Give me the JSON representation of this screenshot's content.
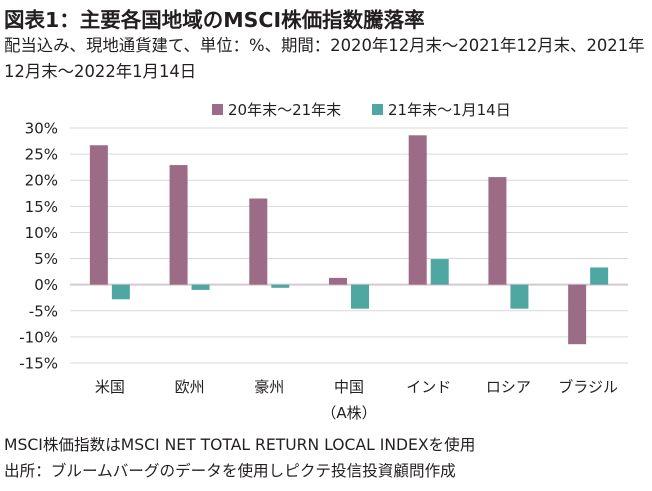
{
  "chart_data": {
    "type": "bar",
    "title": "図表1：主要各国地域のMSCI株価指数騰落率",
    "subtitle": "配当込み、現地通貨建て、単位：%、期間：2020年12月末～2021年12月末、2021年12月末～2022年1月14日",
    "categories": [
      "米国",
      "欧州",
      "豪州",
      "中国",
      "インド",
      "ロシア",
      "ブラジル"
    ],
    "category_sublabels": [
      "",
      "",
      "",
      "（A株）",
      "",
      "",
      ""
    ],
    "series": [
      {
        "name": "20年末～21年末",
        "color": "#9c6b86",
        "values": [
          26.7,
          22.9,
          16.5,
          1.3,
          28.6,
          20.6,
          -11.4
        ]
      },
      {
        "name": "21年末～1月14日",
        "color": "#4fa7a3",
        "values": [
          -2.8,
          -1.0,
          -0.6,
          -4.6,
          4.9,
          -4.6,
          3.3
        ]
      }
    ],
    "ylim": [
      -15,
      30
    ],
    "yticks": [
      30,
      25,
      20,
      15,
      10,
      5,
      0,
      -5,
      -10,
      -15
    ],
    "ytick_labels": [
      "30%",
      "25%",
      "20%",
      "15%",
      "10%",
      "5%",
      "0%",
      "-5%",
      "-10%",
      "-15%"
    ],
    "grid": true,
    "legend_position": "top-center"
  },
  "notes": [
    "MSCI株価指数はMSCI NET TOTAL RETURN LOCAL INDEXを使用",
    "出所：ブルームバーグのデータを使用しピクテ投信投資顧問作成"
  ]
}
